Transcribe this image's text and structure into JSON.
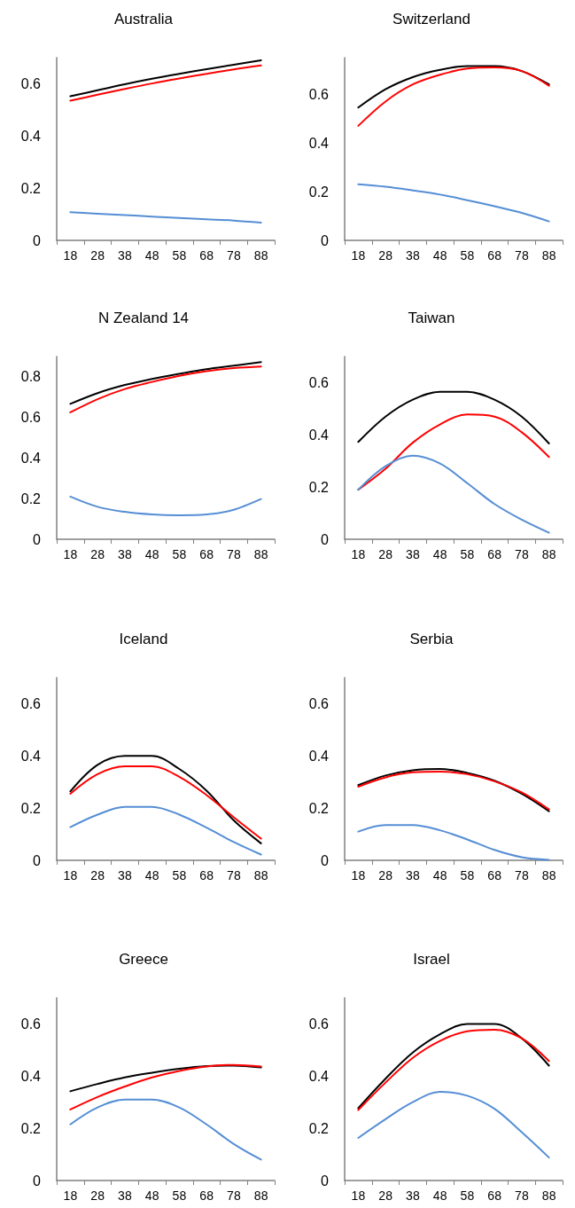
{
  "chart_data": [
    {
      "type": "line",
      "title": "Australia",
      "categories": [
        "18",
        "28",
        "38",
        "48",
        "58",
        "68",
        "78",
        "88"
      ],
      "ylim": [
        0,
        0.7
      ],
      "yticks": [
        0,
        0.2,
        0.4,
        0.6
      ],
      "grid": false,
      "marker": "none",
      "line_style": "solid",
      "series": [
        {
          "color": "#000000",
          "values": [
            0.552,
            0.575,
            0.598,
            0.619,
            0.638,
            0.656,
            0.673,
            0.69
          ]
        },
        {
          "color": "#ff0000",
          "values": [
            0.535,
            0.558,
            0.58,
            0.601,
            0.62,
            0.638,
            0.655,
            0.67
          ]
        },
        {
          "color": "#558ed5",
          "values": [
            0.108,
            0.102,
            0.097,
            0.091,
            0.086,
            0.081,
            0.076,
            0.068
          ]
        }
      ]
    },
    {
      "type": "line",
      "title": "Switzerland",
      "categories": [
        "18",
        "28",
        "38",
        "48",
        "58",
        "68",
        "78",
        "88"
      ],
      "ylim": [
        0,
        0.75
      ],
      "yticks": [
        0,
        0.2,
        0.4,
        0.6
      ],
      "grid": false,
      "marker": "none",
      "line_style": "solid",
      "series": [
        {
          "color": "#000000",
          "values": [
            0.545,
            0.62,
            0.67,
            0.7,
            0.715,
            0.715,
            0.695,
            0.64
          ]
        },
        {
          "color": "#ff0000",
          "values": [
            0.47,
            0.57,
            0.64,
            0.68,
            0.705,
            0.71,
            0.695,
            0.635
          ]
        },
        {
          "color": "#558ed5",
          "values": [
            0.23,
            0.22,
            0.205,
            0.188,
            0.165,
            0.14,
            0.113,
            0.078
          ]
        }
      ]
    },
    {
      "type": "line",
      "title": "N Zealand 14",
      "categories": [
        "18",
        "28",
        "38",
        "48",
        "58",
        "68",
        "78",
        "88"
      ],
      "ylim": [
        0,
        0.9
      ],
      "yticks": [
        0,
        0.2,
        0.4,
        0.6,
        0.8
      ],
      "grid": false,
      "marker": "none",
      "line_style": "solid",
      "series": [
        {
          "color": "#000000",
          "values": [
            0.667,
            0.72,
            0.76,
            0.79,
            0.815,
            0.838,
            0.855,
            0.873
          ]
        },
        {
          "color": "#ff0000",
          "values": [
            0.625,
            0.69,
            0.74,
            0.775,
            0.805,
            0.828,
            0.843,
            0.851
          ]
        },
        {
          "color": "#558ed5",
          "values": [
            0.21,
            0.16,
            0.135,
            0.122,
            0.118,
            0.122,
            0.145,
            0.198
          ]
        }
      ]
    },
    {
      "type": "line",
      "title": "Taiwan",
      "categories": [
        "18",
        "28",
        "38",
        "48",
        "58",
        "68",
        "78",
        "88"
      ],
      "ylim": [
        0,
        0.7
      ],
      "yticks": [
        0,
        0.2,
        0.4,
        0.6
      ],
      "grid": false,
      "marker": "none",
      "line_style": "solid",
      "series": [
        {
          "color": "#000000",
          "values": [
            0.373,
            0.47,
            0.535,
            0.565,
            0.565,
            0.535,
            0.47,
            0.367
          ]
        },
        {
          "color": "#ff0000",
          "values": [
            0.19,
            0.27,
            0.37,
            0.44,
            0.478,
            0.47,
            0.41,
            0.315
          ]
        },
        {
          "color": "#558ed5",
          "values": [
            0.19,
            0.28,
            0.32,
            0.29,
            0.215,
            0.135,
            0.075,
            0.025
          ]
        }
      ]
    },
    {
      "type": "line",
      "title": "Iceland",
      "categories": [
        "18",
        "28",
        "38",
        "48",
        "58",
        "68",
        "78",
        "88"
      ],
      "ylim": [
        0,
        0.7
      ],
      "yticks": [
        0,
        0.2,
        0.4,
        0.6
      ],
      "grid": false,
      "marker": "none",
      "line_style": "solid",
      "series": [
        {
          "color": "#000000",
          "values": [
            0.264,
            0.366,
            0.4,
            0.4,
            0.35,
            0.267,
            0.153,
            0.065
          ]
        },
        {
          "color": "#ff0000",
          "values": [
            0.255,
            0.33,
            0.36,
            0.36,
            0.32,
            0.25,
            0.165,
            0.083
          ]
        },
        {
          "color": "#558ed5",
          "values": [
            0.127,
            0.175,
            0.205,
            0.205,
            0.175,
            0.125,
            0.07,
            0.022
          ]
        }
      ]
    },
    {
      "type": "line",
      "title": "Serbia",
      "categories": [
        "18",
        "28",
        "38",
        "48",
        "58",
        "68",
        "78",
        "88"
      ],
      "ylim": [
        0,
        0.7
      ],
      "yticks": [
        0,
        0.2,
        0.4,
        0.6
      ],
      "grid": false,
      "marker": "none",
      "line_style": "solid",
      "series": [
        {
          "color": "#000000",
          "values": [
            0.288,
            0.325,
            0.345,
            0.35,
            0.335,
            0.305,
            0.255,
            0.188
          ]
        },
        {
          "color": "#ff0000",
          "values": [
            0.282,
            0.318,
            0.337,
            0.34,
            0.33,
            0.303,
            0.26,
            0.195
          ]
        },
        {
          "color": "#558ed5",
          "values": [
            0.11,
            0.135,
            0.135,
            0.115,
            0.08,
            0.04,
            0.012,
            0.002
          ]
        }
      ]
    },
    {
      "type": "line",
      "title": "Greece",
      "categories": [
        "18",
        "28",
        "38",
        "48",
        "58",
        "68",
        "78",
        "88"
      ],
      "ylim": [
        0,
        0.7
      ],
      "yticks": [
        0,
        0.2,
        0.4,
        0.6
      ],
      "grid": false,
      "marker": "none",
      "line_style": "solid",
      "series": [
        {
          "color": "#000000",
          "values": [
            0.342,
            0.37,
            0.395,
            0.413,
            0.428,
            0.438,
            0.44,
            0.433
          ]
        },
        {
          "color": "#ff0000",
          "values": [
            0.272,
            0.32,
            0.36,
            0.395,
            0.42,
            0.437,
            0.443,
            0.437
          ]
        },
        {
          "color": "#558ed5",
          "values": [
            0.215,
            0.28,
            0.31,
            0.31,
            0.28,
            0.215,
            0.14,
            0.08
          ]
        }
      ]
    },
    {
      "type": "line",
      "title": "Israel",
      "categories": [
        "18",
        "28",
        "38",
        "48",
        "58",
        "68",
        "78",
        "88"
      ],
      "ylim": [
        0,
        0.7
      ],
      "yticks": [
        0,
        0.2,
        0.4,
        0.6
      ],
      "grid": false,
      "marker": "none",
      "line_style": "solid",
      "series": [
        {
          "color": "#000000",
          "values": [
            0.277,
            0.39,
            0.49,
            0.56,
            0.6,
            0.6,
            0.545,
            0.44
          ]
        },
        {
          "color": "#ff0000",
          "values": [
            0.27,
            0.375,
            0.47,
            0.535,
            0.572,
            0.578,
            0.545,
            0.458
          ]
        },
        {
          "color": "#558ed5",
          "values": [
            0.163,
            0.235,
            0.3,
            0.34,
            0.325,
            0.275,
            0.185,
            0.088
          ]
        }
      ]
    }
  ]
}
